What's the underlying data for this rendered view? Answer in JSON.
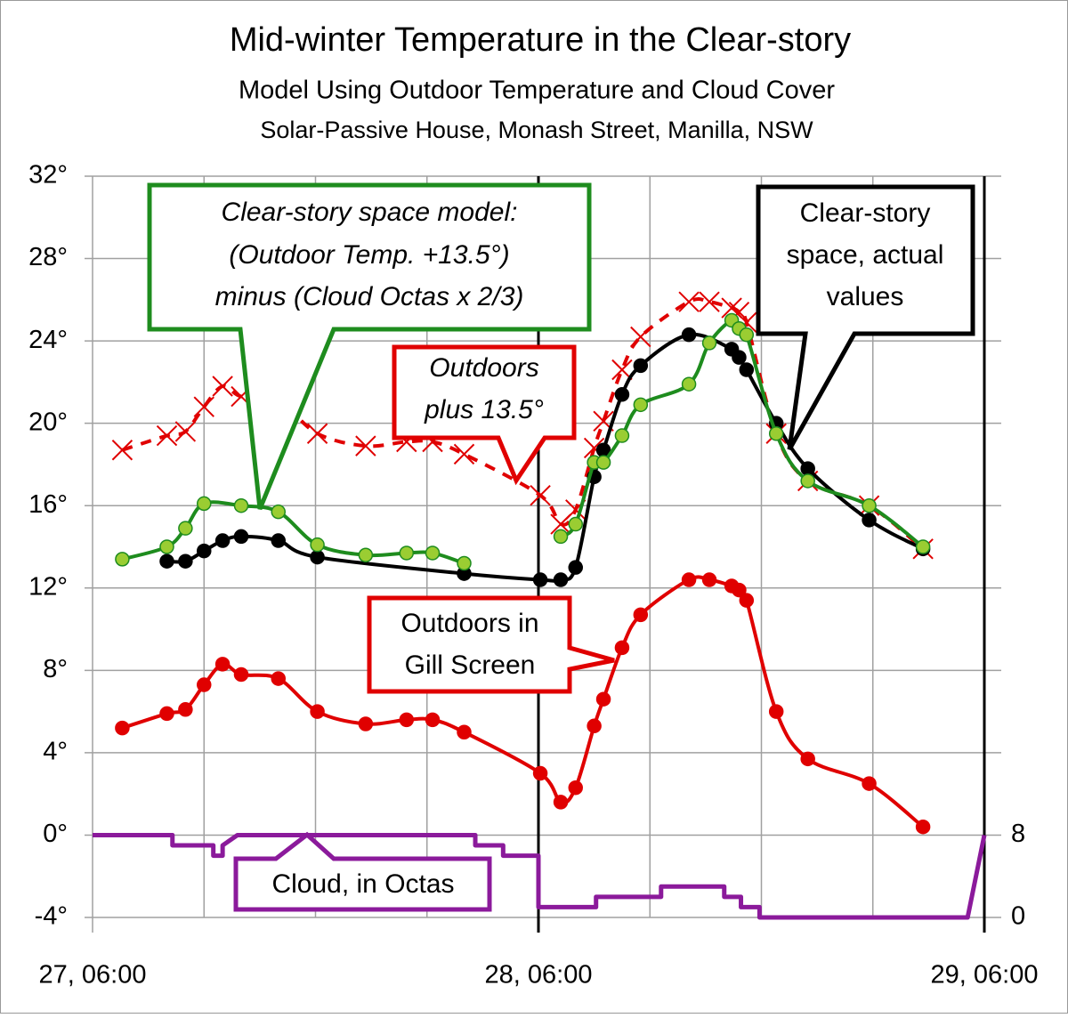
{
  "chart_data": {
    "type": "line",
    "title": "Mid-winter Temperature in the Clear-story",
    "subtitle": "Model Using Outdoor Temperature and Cloud Cover",
    "subtitle2": "Solar-Passive House, Monash Street, Manilla, NSW",
    "xlim": [
      0,
      48
    ],
    "xticks": [
      {
        "value": 0,
        "label": "27, 06:00"
      },
      {
        "value": 24,
        "label": "28, 06:00"
      },
      {
        "value": 48,
        "label": "29, 06:00"
      }
    ],
    "xgrid": [
      6,
      12,
      18,
      30,
      36,
      42
    ],
    "ylim": [
      -4,
      32
    ],
    "yticks": [
      {
        "value": -4,
        "label": "-4°"
      },
      {
        "value": 0,
        "label": "0°"
      },
      {
        "value": 4,
        "label": "4°"
      },
      {
        "value": 8,
        "label": "8°"
      },
      {
        "value": 12,
        "label": "12°"
      },
      {
        "value": 16,
        "label": "16°"
      },
      {
        "value": 20,
        "label": "20°"
      },
      {
        "value": 24,
        "label": "24°"
      },
      {
        "value": 28,
        "label": "28°"
      },
      {
        "value": 32,
        "label": "32°"
      }
    ],
    "y2lim": [
      0,
      72
    ],
    "y2ticks": [
      0,
      8
    ],
    "grid": true,
    "series": [
      {
        "color": "#e00000",
        "style": "dashed",
        "marker": "x",
        "smooth": true,
        "x": [
          1.6,
          4.0,
          5.0,
          6.0,
          7.0,
          8.0,
          10.0,
          12.1,
          14.7,
          16.9,
          18.3,
          20.0,
          24.1,
          25.2,
          26.0,
          27.0,
          27.5,
          28.5,
          29.5,
          32.1,
          33.2,
          34.4,
          34.8,
          35.2,
          36.8,
          38.5,
          41.8,
          44.7
        ],
        "values": [
          18.7,
          19.4,
          19.6,
          20.8,
          21.8,
          21.3,
          21.1,
          19.5,
          18.9,
          19.1,
          19.1,
          18.5,
          16.5,
          15.1,
          15.8,
          18.8,
          20.1,
          22.6,
          24.2,
          25.9,
          25.9,
          25.6,
          25.4,
          24.9,
          19.5,
          17.2,
          16.0,
          13.9
        ]
      },
      {
        "color": "#e00000",
        "style": "solid",
        "marker": "circle",
        "marker_fill": "#e00000",
        "smooth": true,
        "x": [
          1.6,
          4.0,
          5.0,
          6.0,
          7.0,
          8.0,
          10.0,
          12.1,
          14.7,
          16.9,
          18.3,
          20.0,
          24.1,
          25.2,
          26.0,
          27.0,
          27.5,
          28.5,
          29.5,
          32.1,
          33.2,
          34.4,
          34.8,
          35.2,
          36.8,
          38.5,
          41.8,
          44.7
        ],
        "values": [
          5.2,
          5.9,
          6.1,
          7.3,
          8.3,
          7.8,
          7.6,
          6.0,
          5.4,
          5.6,
          5.6,
          5.0,
          3.0,
          1.6,
          2.3,
          5.3,
          6.6,
          9.1,
          10.7,
          12.4,
          12.4,
          12.1,
          11.9,
          11.4,
          6.0,
          3.7,
          2.5,
          0.4
        ]
      },
      {
        "color": "#000000",
        "style": "solid",
        "marker": "circle",
        "marker_fill": "#000000",
        "smooth": true,
        "x": [
          4.0,
          5.0,
          6.0,
          7.0,
          8.0,
          10.0,
          12.1,
          20.0,
          24.1,
          25.2,
          26.0,
          27.0,
          27.5,
          28.5,
          29.5,
          32.1,
          34.4,
          34.8,
          35.2,
          36.8,
          38.5,
          41.8,
          44.7
        ],
        "values": [
          13.3,
          13.3,
          13.8,
          14.3,
          14.5,
          14.3,
          13.5,
          12.7,
          12.4,
          12.4,
          13.0,
          17.4,
          18.7,
          21.4,
          22.8,
          24.3,
          23.6,
          23.2,
          22.6,
          20.0,
          17.8,
          15.3,
          13.9
        ]
      },
      {
        "color": "#1e8c1e",
        "style": "solid",
        "marker": "circle",
        "marker_fill": "#9acd32",
        "smooth": true,
        "x": [
          1.6,
          4.0,
          5.0,
          6.0,
          8.0,
          10.0,
          12.1,
          14.7,
          16.9,
          18.3,
          20.0,
          24.1,
          25.2,
          26.0,
          27.0,
          27.5,
          28.5,
          29.5,
          32.1,
          33.2,
          34.4,
          34.8,
          35.2,
          36.8,
          38.5,
          41.8,
          44.7
        ],
        "values": [
          13.4,
          14.0,
          14.9,
          16.1,
          16.0,
          15.7,
          14.1,
          13.6,
          13.7,
          13.7,
          13.2,
          null,
          14.5,
          15.1,
          18.1,
          18.1,
          19.4,
          20.9,
          21.9,
          23.9,
          25.0,
          24.6,
          24.3,
          19.5,
          17.2,
          16.0,
          14.0
        ]
      },
      {
        "color": "#8b1a9b",
        "style": "solid",
        "marker": "none",
        "smooth": false,
        "axis": "y2",
        "x": [
          0,
          4.3,
          4.3,
          6.5,
          6.5,
          7.0,
          7.0,
          7.8,
          20.6,
          20.6,
          22.1,
          22.1,
          24.0,
          24.0,
          27.1,
          27.1,
          30.6,
          30.6,
          34.0,
          34.0,
          34.9,
          34.9,
          35.9,
          35.9,
          47.1,
          48.0
        ],
        "values": [
          8,
          8,
          7,
          7,
          6,
          6,
          7,
          8,
          8,
          7,
          7,
          6,
          6,
          1,
          1,
          2,
          2,
          3,
          3,
          2,
          2,
          1,
          1,
          0,
          0,
          8
        ]
      }
    ],
    "annotations": [
      {
        "lines": [
          "Clear-story space model:",
          "(Outdoor Temp.  +13.5°)",
          "minus (Cloud Octas x 2/3)"
        ]
      },
      {
        "lines": [
          "Outdoors",
          "plus 13.5°"
        ]
      },
      {
        "lines": [
          "Clear-story",
          "space, actual",
          "values"
        ]
      },
      {
        "lines": [
          "Outdoors in",
          "Gill Screen"
        ]
      },
      {
        "lines": [
          "Cloud, in Octas"
        ]
      }
    ]
  }
}
